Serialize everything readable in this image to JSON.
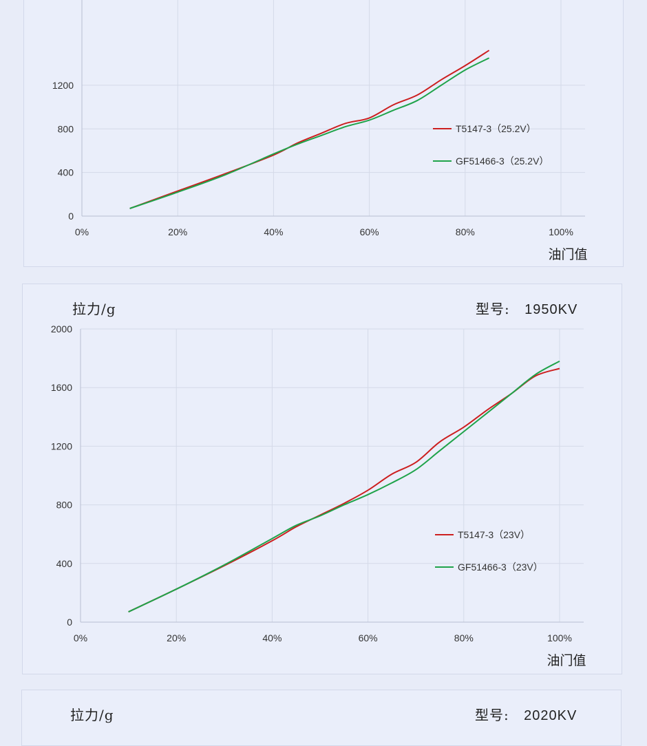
{
  "charts": [
    {
      "ylabel": "",
      "model_label": "",
      "model": ""
    },
    {
      "ylabel": "拉力/g",
      "model_label": "型号:",
      "model": "1950KV"
    },
    {
      "ylabel": "拉力/g",
      "model_label": "型号:",
      "model": "2020KV"
    }
  ],
  "chart_data": [
    {
      "type": "line",
      "xlabel": "油门值",
      "ylabel": "",
      "xlim": [
        0,
        100
      ],
      "ylim": [
        0,
        1600
      ],
      "yticks": [
        0,
        400,
        800,
        1200
      ],
      "xticks": [
        "0%",
        "20%",
        "40%",
        "60%",
        "80%",
        "100%"
      ],
      "legend_position": "right-middle",
      "series": [
        {
          "name": "T5147-3（25.2V）",
          "color": "#cc1f1f",
          "x": [
            10,
            20,
            30,
            40,
            45,
            50,
            55,
            60,
            65,
            70,
            75,
            80,
            85
          ],
          "y": [
            70,
            230,
            390,
            560,
            670,
            760,
            850,
            900,
            1020,
            1110,
            1250,
            1380,
            1520
          ]
        },
        {
          "name": "GF51466-3（25.2V）",
          "color": "#1fa34a",
          "x": [
            10,
            20,
            30,
            40,
            45,
            50,
            55,
            60,
            65,
            70,
            75,
            80,
            85
          ],
          "y": [
            70,
            220,
            380,
            570,
            660,
            740,
            820,
            880,
            970,
            1060,
            1200,
            1340,
            1450
          ]
        }
      ]
    },
    {
      "type": "line",
      "title": "",
      "xlabel": "油门值",
      "ylabel": "拉力/g",
      "xlim": [
        0,
        100
      ],
      "ylim": [
        0,
        2000
      ],
      "yticks": [
        0,
        400,
        800,
        1200,
        1600,
        2000
      ],
      "xticks": [
        "0%",
        "20%",
        "40%",
        "60%",
        "80%",
        "100%"
      ],
      "legend_position": "right-middle",
      "series": [
        {
          "name": "T5147-3（23V）",
          "color": "#cc1f1f",
          "x": [
            10,
            20,
            30,
            40,
            45,
            50,
            55,
            60,
            65,
            70,
            75,
            80,
            85,
            90,
            95,
            100
          ],
          "y": [
            70,
            225,
            385,
            555,
            650,
            730,
            810,
            900,
            1010,
            1090,
            1230,
            1330,
            1450,
            1560,
            1680,
            1730
          ]
        },
        {
          "name": "GF51466-3（23V）",
          "color": "#1fa34a",
          "x": [
            10,
            20,
            30,
            40,
            45,
            50,
            55,
            60,
            65,
            70,
            75,
            80,
            85,
            90,
            95,
            100
          ],
          "y": [
            70,
            225,
            390,
            570,
            660,
            725,
            800,
            870,
            950,
            1040,
            1170,
            1300,
            1430,
            1560,
            1690,
            1780
          ]
        }
      ]
    }
  ]
}
